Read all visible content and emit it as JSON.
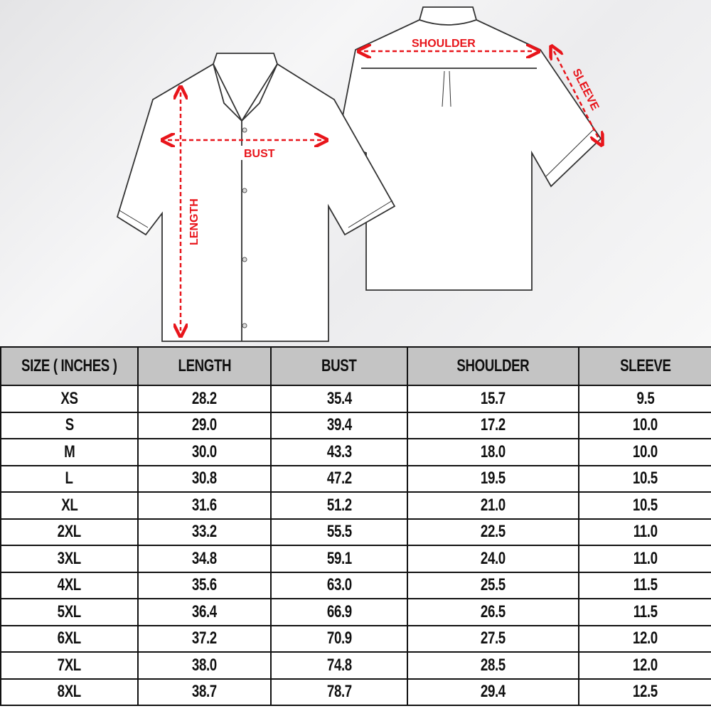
{
  "diagram_labels": {
    "bust": "BUST",
    "length": "LENGTH",
    "shoulder": "SHOULDER",
    "sleeve": "SLEEVE"
  },
  "colors": {
    "measure_arrow": "#e8151b",
    "header_bg": "#c4c4c4",
    "border": "#111111"
  },
  "table": {
    "headers": [
      "SIZE ( INCHES )",
      "LENGTH",
      "BUST",
      "SHOULDER",
      "SLEEVE"
    ],
    "rows": [
      [
        "XS",
        "28.2",
        "35.4",
        "15.7",
        "9.5"
      ],
      [
        "S",
        "29.0",
        "39.4",
        "17.2",
        "10.0"
      ],
      [
        "M",
        "30.0",
        "43.3",
        "18.0",
        "10.0"
      ],
      [
        "L",
        "30.8",
        "47.2",
        "19.5",
        "10.5"
      ],
      [
        "XL",
        "31.6",
        "51.2",
        "21.0",
        "10.5"
      ],
      [
        "2XL",
        "33.2",
        "55.5",
        "22.5",
        "11.0"
      ],
      [
        "3XL",
        "34.8",
        "59.1",
        "24.0",
        "11.0"
      ],
      [
        "4XL",
        "35.6",
        "63.0",
        "25.5",
        "11.5"
      ],
      [
        "5XL",
        "36.4",
        "66.9",
        "26.5",
        "11.5"
      ],
      [
        "6XL",
        "37.2",
        "70.9",
        "27.5",
        "12.0"
      ],
      [
        "7XL",
        "38.0",
        "74.8",
        "28.5",
        "12.0"
      ],
      [
        "8XL",
        "38.7",
        "78.7",
        "29.4",
        "12.5"
      ]
    ]
  }
}
